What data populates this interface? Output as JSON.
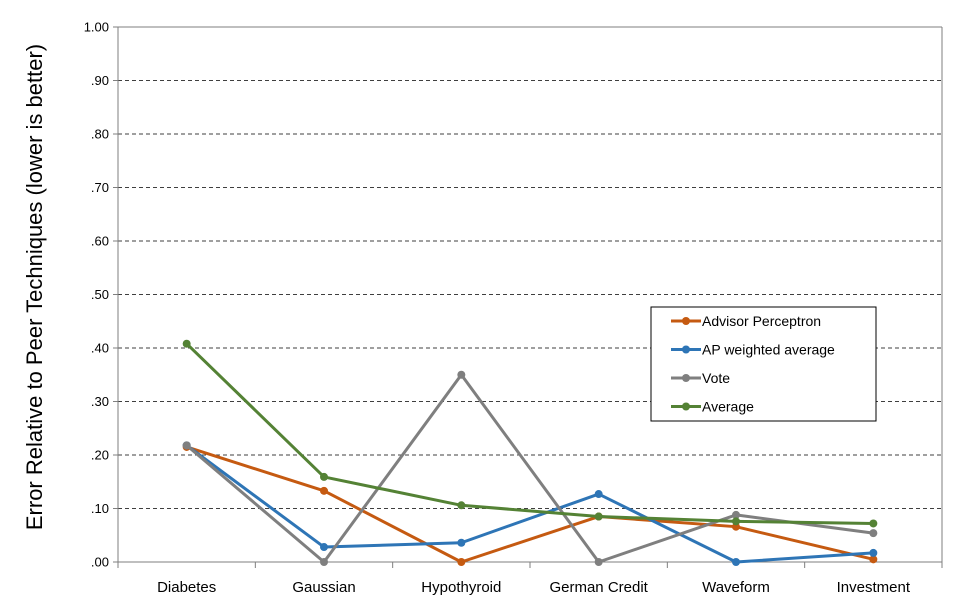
{
  "chart_data": {
    "type": "line",
    "title": "",
    "xlabel": "",
    "ylabel": "Error Relative to Peer Techniques (lower is better)",
    "ylim": [
      0,
      1
    ],
    "yticks": [
      0,
      0.1,
      0.2,
      0.3,
      0.4,
      0.5,
      0.6,
      0.7,
      0.8,
      0.9,
      1.0
    ],
    "ytick_labels": [
      ".00",
      ".10",
      ".20",
      ".30",
      ".40",
      ".50",
      ".60",
      ".70",
      ".80",
      ".90",
      "1.00"
    ],
    "grid": "horizontal dashed",
    "legend_position": "right",
    "categories": [
      "Diabetes",
      "Gaussian",
      "Hypothyroid",
      "German Credit",
      "Waveform",
      "Investment"
    ],
    "series": [
      {
        "name": "Advisor Perceptron",
        "color": "#C55A11",
        "values": [
          0.215,
          0.133,
          0.0,
          0.085,
          0.066,
          0.005
        ]
      },
      {
        "name": "AP weighted average",
        "color": "#2E75B6",
        "values": [
          0.218,
          0.028,
          0.036,
          0.127,
          0.0,
          0.017
        ]
      },
      {
        "name": "Vote",
        "color": "#7F7F7F",
        "values": [
          0.218,
          0.0,
          0.35,
          0.0,
          0.088,
          0.054
        ]
      },
      {
        "name": "Average",
        "color": "#548235",
        "values": [
          0.408,
          0.159,
          0.106,
          0.085,
          0.076,
          0.072
        ]
      }
    ]
  }
}
